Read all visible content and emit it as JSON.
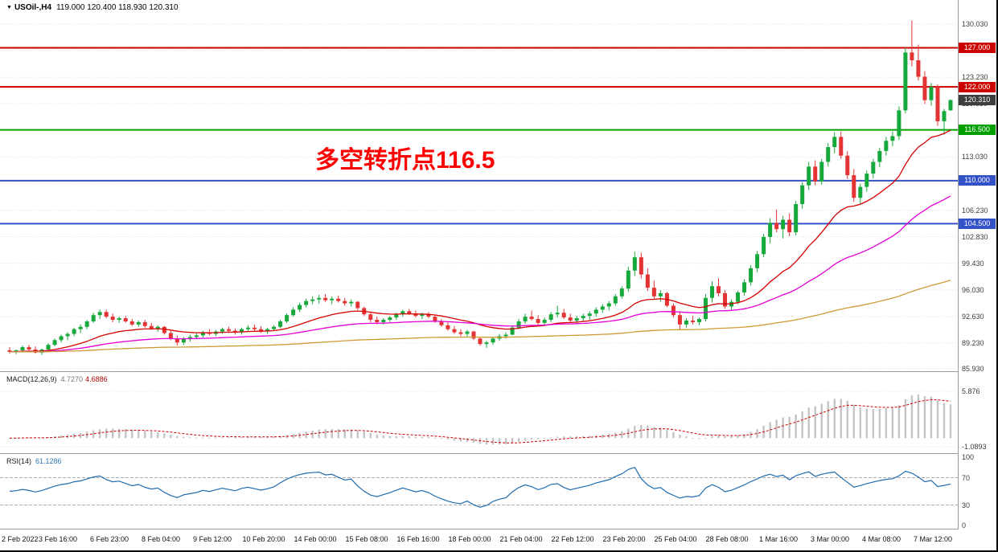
{
  "title": {
    "symbol": "USOil-,H4",
    "ohlc": "119.000 120.400 118.930 120.310"
  },
  "annotation": {
    "text": "多空转折点116.5",
    "color": "#ff0000"
  },
  "indicators": {
    "macd": {
      "name": "MACD(12,26,9)",
      "value_main": "4.7270",
      "value_signal": "4.6886",
      "params": {
        "fast": 12,
        "slow": 26,
        "signal": 9
      },
      "scale_labels": [
        {
          "value": 5.876,
          "label": "5.876"
        },
        {
          "value": -1.0893,
          "label": "-1.0893"
        }
      ],
      "histogram_color": "#c4c4c4",
      "signal_color": "#cc0000"
    },
    "rsi": {
      "name": "RSI(14)",
      "value": "61.1286",
      "period": 14,
      "levels": [
        100,
        70,
        30,
        0
      ],
      "guide_levels": [
        70,
        30
      ],
      "line_color": "#1f6cb0"
    }
  },
  "chart_data": {
    "type": "candlestick",
    "symbol": "USOil-",
    "timeframe": "H4",
    "up_color": "#17a83b",
    "down_color": "#e33334",
    "price_ticks": [
      {
        "value": 130.03,
        "label": "130.030"
      },
      {
        "value": 126.63,
        "label": "126.630"
      },
      {
        "value": 123.23,
        "label": "123.230"
      },
      {
        "value": 119.83,
        "label": "119.830"
      },
      {
        "value": 116.43,
        "label": "116.430"
      },
      {
        "value": 113.03,
        "label": "113.030"
      },
      {
        "value": 109.63,
        "label": "109.630"
      },
      {
        "value": 106.23,
        "label": "106.230"
      },
      {
        "value": 102.83,
        "label": "102.830"
      },
      {
        "value": 99.43,
        "label": "99.430"
      },
      {
        "value": 96.03,
        "label": "96.030"
      },
      {
        "value": 92.63,
        "label": "92.630"
      },
      {
        "value": 89.23,
        "label": "89.230"
      },
      {
        "value": 85.93,
        "label": "85.930"
      }
    ],
    "levels": [
      {
        "price": 127.0,
        "label": "127.000",
        "color": "#cc0000",
        "width": 2
      },
      {
        "price": 122.0,
        "label": "122.000",
        "color": "#cc0000",
        "width": 2
      },
      {
        "price": 116.5,
        "label": "116.500",
        "color": "#00a000",
        "width": 2
      },
      {
        "price": 110.0,
        "label": "110.000",
        "color": "#3352c8",
        "width": 2
      },
      {
        "price": 104.5,
        "label": "104.500",
        "color": "#3352c8",
        "width": 2
      }
    ],
    "current_price": {
      "value": 120.31,
      "label": "120.310",
      "color": "#3d3d3d"
    },
    "moving_averages": [
      {
        "period": 20,
        "color": "#d40000"
      },
      {
        "period": 55,
        "color": "#e400d4"
      },
      {
        "period": 200,
        "color": "#cf9a33"
      }
    ],
    "time_labels": [
      "2 Feb 2022",
      "3 Feb 16:00",
      "6 Feb 23:00",
      "8 Feb 04:00",
      "9 Feb 12:00",
      "10 Feb 20:00",
      "14 Feb 00:00",
      "15 Feb 08:00",
      "16 Feb 16:00",
      "18 Feb 00:00",
      "21 Feb 04:00",
      "22 Feb 12:00",
      "23 Feb 20:00",
      "25 Feb 04:00",
      "28 Feb 08:00",
      "1 Mar 16:00",
      "3 Mar 00:00",
      "4 Mar 08:00",
      "7 Mar 12:00"
    ],
    "candles": [
      [
        88.3,
        88.7,
        87.9,
        88.1
      ],
      [
        88.1,
        88.4,
        87.8,
        88.3
      ],
      [
        88.3,
        88.9,
        88.1,
        88.7
      ],
      [
        88.7,
        89.0,
        88.2,
        88.4
      ],
      [
        88.4,
        88.8,
        87.9,
        88.0
      ],
      [
        88.0,
        88.5,
        87.7,
        88.4
      ],
      [
        88.4,
        89.2,
        88.2,
        89.0
      ],
      [
        89.0,
        89.8,
        88.8,
        89.6
      ],
      [
        89.6,
        90.3,
        89.3,
        90.1
      ],
      [
        90.1,
        90.6,
        89.6,
        90.4
      ],
      [
        90.4,
        91.2,
        90.1,
        91.0
      ],
      [
        91.0,
        91.6,
        90.5,
        91.3
      ],
      [
        91.3,
        92.2,
        91.0,
        92.0
      ],
      [
        92.0,
        93.1,
        91.8,
        92.8
      ],
      [
        92.8,
        93.5,
        92.3,
        93.2
      ],
      [
        93.2,
        93.5,
        92.4,
        92.6
      ],
      [
        92.6,
        93.0,
        91.9,
        92.2
      ],
      [
        92.2,
        92.6,
        91.8,
        92.4
      ],
      [
        92.4,
        92.7,
        91.8,
        92.0
      ],
      [
        92.0,
        92.3,
        91.4,
        91.6
      ],
      [
        91.6,
        92.1,
        91.3,
        91.9
      ],
      [
        91.9,
        92.2,
        91.2,
        91.4
      ],
      [
        91.4,
        91.8,
        90.9,
        91.1
      ],
      [
        91.1,
        91.5,
        90.7,
        91.3
      ],
      [
        91.3,
        91.4,
        90.3,
        90.5
      ],
      [
        90.5,
        90.8,
        89.6,
        89.8
      ],
      [
        89.8,
        90.2,
        88.9,
        89.3
      ],
      [
        89.3,
        90.0,
        89.0,
        89.8
      ],
      [
        89.8,
        90.3,
        89.4,
        90.0
      ],
      [
        90.0,
        90.5,
        89.7,
        90.2
      ],
      [
        90.2,
        90.8,
        89.9,
        90.6
      ],
      [
        90.6,
        91.0,
        90.2,
        90.4
      ],
      [
        90.4,
        90.9,
        90.1,
        90.7
      ],
      [
        90.7,
        91.2,
        90.4,
        91.0
      ],
      [
        91.0,
        91.3,
        90.5,
        90.8
      ],
      [
        90.8,
        91.1,
        90.3,
        90.6
      ],
      [
        90.6,
        91.2,
        90.3,
        91.0
      ],
      [
        91.0,
        91.5,
        90.7,
        91.2
      ],
      [
        91.2,
        91.6,
        90.8,
        91.0
      ],
      [
        91.0,
        91.4,
        90.5,
        90.8
      ],
      [
        90.8,
        91.2,
        90.4,
        91.0
      ],
      [
        91.0,
        91.5,
        90.8,
        91.3
      ],
      [
        91.3,
        92.2,
        91.1,
        92.0
      ],
      [
        92.0,
        93.0,
        91.8,
        92.8
      ],
      [
        92.8,
        93.8,
        92.6,
        93.5
      ],
      [
        93.5,
        94.4,
        93.2,
        94.1
      ],
      [
        94.1,
        94.9,
        93.8,
        94.6
      ],
      [
        94.6,
        95.2,
        94.2,
        94.8
      ],
      [
        94.8,
        95.4,
        94.3,
        95.0
      ],
      [
        95.0,
        95.5,
        94.5,
        94.7
      ],
      [
        94.7,
        95.2,
        94.2,
        94.9
      ],
      [
        94.9,
        95.3,
        94.4,
        94.6
      ],
      [
        94.6,
        95.0,
        94.0,
        94.3
      ],
      [
        94.3,
        94.8,
        93.9,
        94.5
      ],
      [
        94.5,
        94.6,
        93.5,
        93.7
      ],
      [
        93.7,
        93.9,
        92.7,
        92.9
      ],
      [
        92.9,
        93.2,
        91.9,
        92.2
      ],
      [
        92.2,
        92.6,
        91.6,
        91.9
      ],
      [
        91.9,
        92.4,
        91.6,
        92.2
      ],
      [
        92.2,
        92.7,
        91.9,
        92.5
      ],
      [
        92.5,
        93.1,
        92.2,
        92.9
      ],
      [
        92.9,
        93.5,
        92.6,
        93.3
      ],
      [
        93.3,
        93.6,
        92.8,
        93.0
      ],
      [
        93.0,
        93.4,
        92.5,
        92.7
      ],
      [
        92.7,
        93.1,
        92.3,
        92.9
      ],
      [
        92.9,
        93.2,
        92.4,
        92.6
      ],
      [
        92.6,
        92.8,
        91.8,
        92.0
      ],
      [
        92.0,
        92.3,
        91.3,
        91.5
      ],
      [
        91.5,
        91.9,
        90.8,
        91.0
      ],
      [
        91.0,
        91.4,
        90.4,
        90.6
      ],
      [
        90.6,
        91.0,
        90.1,
        90.4
      ],
      [
        90.4,
        90.9,
        90.0,
        90.7
      ],
      [
        90.7,
        90.8,
        89.6,
        89.8
      ],
      [
        89.8,
        90.0,
        88.9,
        89.1
      ],
      [
        89.1,
        89.5,
        88.6,
        89.3
      ],
      [
        89.3,
        90.0,
        89.0,
        89.8
      ],
      [
        89.8,
        90.4,
        89.5,
        90.1
      ],
      [
        90.1,
        90.6,
        89.8,
        90.3
      ],
      [
        90.3,
        91.5,
        90.2,
        91.2
      ],
      [
        91.2,
        92.3,
        91.0,
        92.0
      ],
      [
        92.0,
        93.0,
        91.7,
        92.6
      ],
      [
        92.6,
        93.4,
        92.1,
        92.3
      ],
      [
        92.3,
        92.8,
        91.5,
        91.8
      ],
      [
        91.8,
        92.5,
        91.4,
        92.2
      ],
      [
        92.2,
        93.2,
        91.9,
        92.9
      ],
      [
        92.9,
        94.0,
        92.5,
        93.1
      ],
      [
        93.1,
        93.6,
        92.3,
        92.5
      ],
      [
        92.5,
        93.0,
        91.8,
        92.1
      ],
      [
        92.1,
        92.7,
        91.7,
        92.4
      ],
      [
        92.4,
        93.0,
        92.0,
        92.7
      ],
      [
        92.7,
        93.3,
        92.2,
        93.0
      ],
      [
        93.0,
        93.8,
        92.6,
        93.5
      ],
      [
        93.5,
        94.2,
        93.1,
        93.9
      ],
      [
        93.9,
        94.6,
        93.4,
        94.3
      ],
      [
        94.3,
        95.5,
        94.0,
        95.2
      ],
      [
        95.2,
        96.5,
        94.9,
        96.2
      ],
      [
        96.2,
        99.0,
        95.8,
        98.5
      ],
      [
        98.5,
        100.9,
        97.8,
        100.2
      ],
      [
        100.2,
        100.8,
        97.5,
        98.0
      ],
      [
        98.0,
        98.8,
        95.9,
        96.3
      ],
      [
        96.3,
        97.2,
        94.8,
        95.2
      ],
      [
        95.2,
        96.0,
        94.5,
        95.6
      ],
      [
        95.6,
        95.8,
        93.8,
        94.0
      ],
      [
        94.0,
        94.3,
        92.5,
        92.8
      ],
      [
        92.8,
        93.3,
        90.9,
        91.6
      ],
      [
        91.6,
        92.4,
        91.2,
        92.1
      ],
      [
        92.1,
        92.7,
        91.6,
        91.9
      ],
      [
        91.9,
        92.5,
        91.5,
        92.3
      ],
      [
        92.3,
        95.5,
        92.0,
        95.0
      ],
      [
        95.0,
        97.1,
        94.4,
        96.5
      ],
      [
        96.5,
        97.5,
        95.2,
        95.6
      ],
      [
        95.6,
        96.0,
        93.6,
        93.9
      ],
      [
        93.9,
        94.8,
        93.4,
        94.5
      ],
      [
        94.5,
        95.9,
        94.2,
        95.7
      ],
      [
        95.7,
        97.4,
        95.3,
        97.0
      ],
      [
        97.0,
        99.2,
        96.6,
        98.8
      ],
      [
        98.8,
        101.0,
        98.3,
        100.6
      ],
      [
        100.6,
        103.2,
        100.2,
        102.8
      ],
      [
        102.8,
        105.2,
        102.0,
        104.6
      ],
      [
        104.6,
        106.3,
        103.4,
        103.8
      ],
      [
        103.8,
        105.5,
        102.6,
        105.0
      ],
      [
        105.0,
        105.8,
        102.9,
        103.4
      ],
      [
        103.4,
        107.4,
        103.0,
        107.0
      ],
      [
        107.0,
        109.8,
        106.4,
        109.4
      ],
      [
        109.4,
        112.4,
        108.8,
        111.8
      ],
      [
        111.8,
        112.6,
        109.4,
        109.9
      ],
      [
        109.9,
        112.8,
        109.5,
        112.4
      ],
      [
        112.4,
        114.8,
        111.8,
        114.3
      ],
      [
        114.3,
        116.2,
        113.5,
        115.6
      ],
      [
        115.6,
        116.3,
        112.8,
        113.2
      ],
      [
        113.2,
        113.8,
        110.2,
        110.7
      ],
      [
        110.7,
        111.5,
        107.3,
        107.8
      ],
      [
        107.8,
        109.6,
        107.0,
        109.2
      ],
      [
        109.2,
        111.3,
        108.6,
        110.9
      ],
      [
        110.9,
        112.8,
        110.3,
        112.4
      ],
      [
        112.4,
        114.2,
        111.7,
        113.8
      ],
      [
        113.8,
        115.6,
        113.2,
        115.1
      ],
      [
        115.1,
        116.3,
        114.4,
        115.7
      ],
      [
        115.7,
        119.5,
        115.2,
        119.0
      ],
      [
        119.0,
        127.0,
        118.6,
        126.4
      ],
      [
        126.4,
        130.5,
        124.6,
        125.4
      ],
      [
        125.4,
        127.4,
        122.8,
        123.3
      ],
      [
        123.3,
        124.0,
        119.8,
        120.3
      ],
      [
        120.3,
        122.5,
        119.6,
        122.0
      ],
      [
        122.0,
        122.3,
        117.0,
        117.6
      ],
      [
        117.6,
        119.2,
        115.9,
        118.9
      ],
      [
        119.0,
        120.4,
        118.93,
        120.31
      ]
    ]
  }
}
